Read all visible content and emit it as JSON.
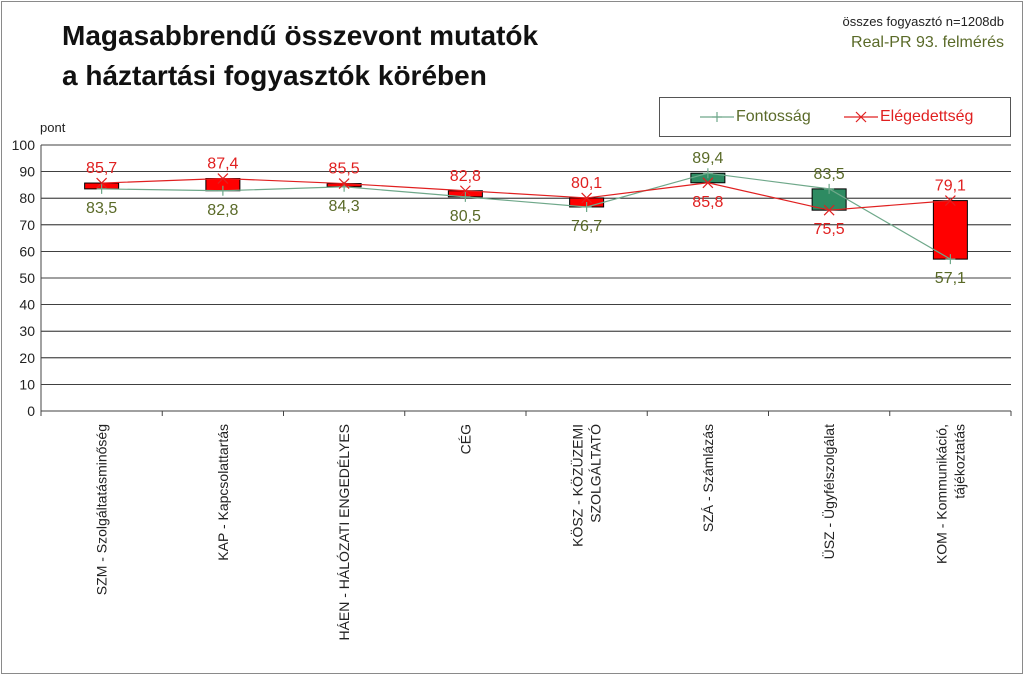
{
  "title": "Magasabbrendű összevont mutatók\na háztartási fogyasztók körében",
  "note_sample": "összes fogyasztó n=1208db",
  "note_source": "Real-PR 93. felmérés",
  "colors": {
    "importance": "#6fa88a",
    "importance_label": "#5a6a28",
    "satisfaction": "#e02020",
    "satisfaction_label": "#e02020",
    "box_up": "#2e8b62",
    "box_down": "#ff0000",
    "grid": "#000000",
    "axis_text": "#222222"
  },
  "chart_data": {
    "type": "line",
    "ylabel": "pont",
    "ylim": [
      0,
      100
    ],
    "ytick_step": 10,
    "grid": true,
    "legend_position": "top-right",
    "categories": [
      "SZM - Szolgáltatásminőség",
      "KAP - Kapcsolattartás",
      "HÁEN - HÁLÓZATI ENGEDÉLYES",
      "CÉG",
      "KÖSZ - KÖZÜZEMI\nSZOLGÁLTATÓ",
      "SZÁ - Számlázás",
      "ÜSZ - Ügyfélszolgálat",
      "KOM - Kommunikáció,\ntájékoztatás"
    ],
    "series": [
      {
        "name": "Fontosság",
        "marker": "plus",
        "values": [
          83.5,
          82.8,
          84.3,
          80.5,
          76.7,
          89.4,
          83.5,
          57.1
        ]
      },
      {
        "name": "Elégedettség",
        "marker": "x",
        "values": [
          85.7,
          87.4,
          85.5,
          82.8,
          80.1,
          85.8,
          75.5,
          79.1
        ]
      }
    ],
    "value_labels": {
      "importance": [
        "83,5",
        "82,8",
        "84,3",
        "80,5",
        "76,7",
        "89,4",
        "83,5",
        "57,1"
      ],
      "satisfaction": [
        "85,7",
        "87,4",
        "85,5",
        "82,8",
        "80,1",
        "85,8",
        "75,5",
        "79,1"
      ]
    }
  }
}
